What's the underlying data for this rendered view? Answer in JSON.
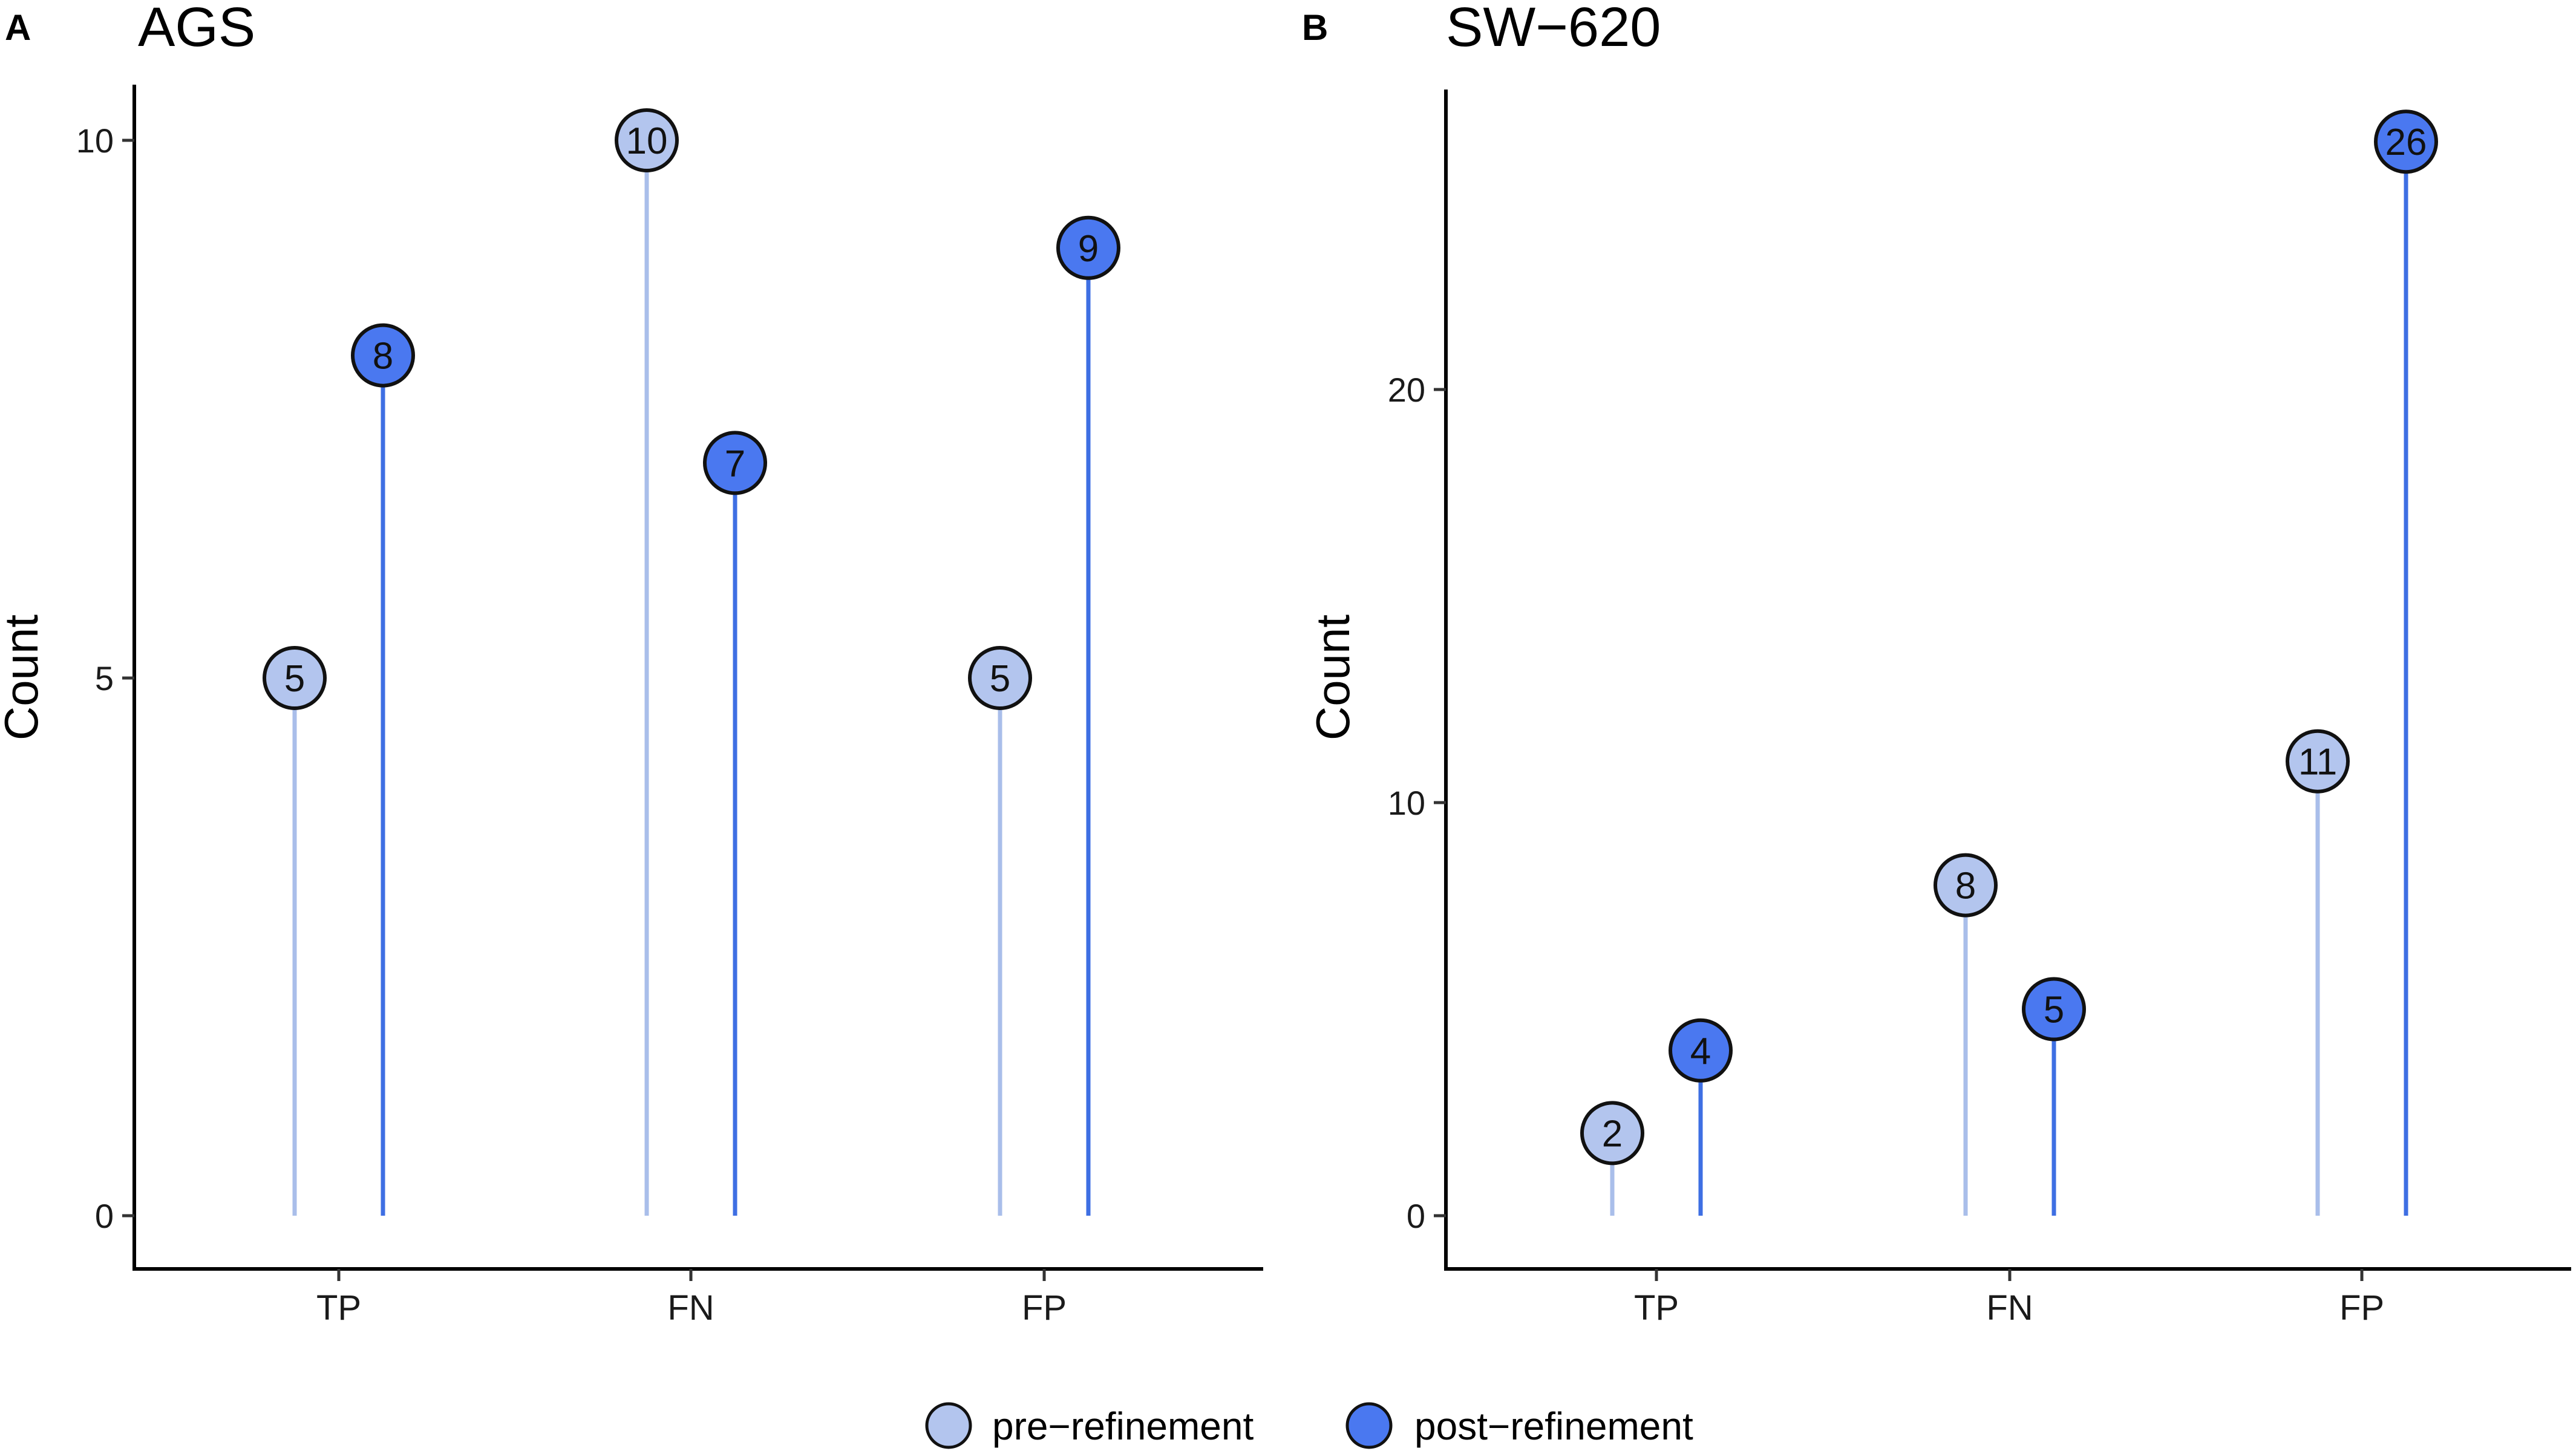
{
  "colors": {
    "pre_point": "#B3C5EE",
    "pre_line": "#A9BEEA",
    "post_point": "#4A78F0",
    "post_line": "#3E6FE3",
    "outline": "#111111"
  },
  "legend": {
    "items": [
      {
        "label": "pre−refinement",
        "series": "pre"
      },
      {
        "label": "post−refinement",
        "series": "post"
      }
    ]
  },
  "chart_data": [
    {
      "type": "lollipop",
      "panel": "A",
      "title": "AGS",
      "xlabel": "",
      "ylabel": "Count",
      "categories": [
        "TP",
        "FN",
        "FP"
      ],
      "series": [
        {
          "name": "pre−refinement",
          "key": "pre",
          "values": [
            5,
            10,
            5
          ]
        },
        {
          "name": "post−refinement",
          "key": "post",
          "values": [
            8,
            7,
            9
          ]
        }
      ],
      "yticks": [
        0,
        5,
        10
      ],
      "ytick_labels": [
        "0",
        "5",
        "10"
      ],
      "ylim": [
        -0.5,
        10.5
      ]
    },
    {
      "type": "lollipop",
      "panel": "B",
      "title": "SW−620",
      "xlabel": "",
      "ylabel": "Count",
      "categories": [
        "TP",
        "FN",
        "FP"
      ],
      "series": [
        {
          "name": "pre−refinement",
          "key": "pre",
          "values": [
            2,
            8,
            11
          ]
        },
        {
          "name": "post−refinement",
          "key": "post",
          "values": [
            4,
            5,
            26
          ]
        }
      ],
      "yticks": [
        0,
        10,
        20
      ],
      "ytick_labels": [
        "0",
        "10",
        "20"
      ],
      "ylim": [
        -1.3,
        27.3
      ]
    }
  ]
}
